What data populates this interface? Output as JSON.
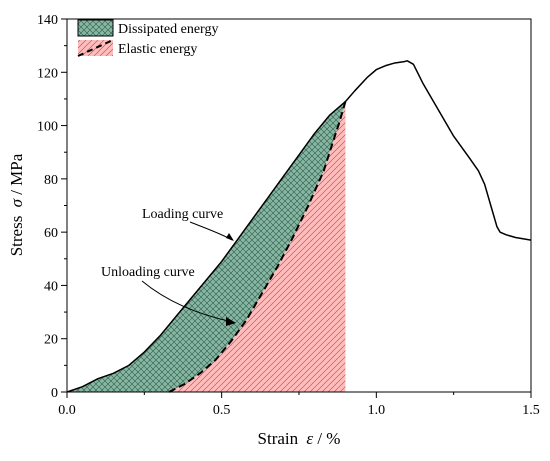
{
  "chart_data": {
    "type": "line",
    "xlabel_text": "Strain",
    "xlabel_symbol": "ε",
    "xlabel_unit": " / %",
    "ylabel_text": "Stress",
    "ylabel_symbol": "σ",
    "ylabel_unit": " / MPa",
    "xlim": [
      0,
      1.5
    ],
    "ylim": [
      0,
      140
    ],
    "x_ticks": [
      "0.0",
      "0.5",
      "1.0",
      "1.5"
    ],
    "y_ticks": [
      "0",
      "20",
      "40",
      "60",
      "80",
      "100",
      "120",
      "140"
    ],
    "legend": {
      "placement": "top-left",
      "items": [
        {
          "label": "Dissipated energy",
          "fill": "#87b7a2",
          "pattern": "crosshatch"
        },
        {
          "label": "Elastic energy",
          "fill": "#ffbcbc",
          "pattern": "diagonal"
        }
      ]
    },
    "annotations": {
      "loading": "Loading curve",
      "unloading": "Unloading curve"
    },
    "series": [
      {
        "name": "Loading curve",
        "style": "solid",
        "x": [
          0,
          0.05,
          0.1,
          0.15,
          0.2,
          0.25,
          0.3,
          0.35,
          0.4,
          0.45,
          0.5,
          0.55,
          0.6,
          0.65,
          0.7,
          0.75,
          0.8,
          0.85,
          0.88,
          0.9,
          0.93,
          0.97,
          1.0,
          1.03,
          1.06,
          1.09,
          1.1,
          1.12,
          1.15,
          1.2,
          1.25,
          1.3,
          1.33,
          1.35,
          1.37,
          1.39,
          1.4,
          1.42,
          1.45,
          1.5
        ],
        "y": [
          0,
          2,
          5,
          7,
          10,
          15,
          21,
          28,
          35,
          42,
          49,
          57,
          65,
          73,
          81,
          89,
          97,
          104,
          107,
          109,
          113,
          118,
          121,
          122.5,
          123.5,
          124,
          124.3,
          123,
          116,
          106,
          96,
          88,
          83,
          78,
          70,
          62,
          60,
          59,
          58,
          57
        ]
      },
      {
        "name": "Unloading curve",
        "style": "dashed",
        "x": [
          0.33,
          0.38,
          0.43,
          0.48,
          0.53,
          0.58,
          0.63,
          0.68,
          0.73,
          0.78,
          0.83,
          0.86,
          0.88,
          0.9
        ],
        "y": [
          0,
          3,
          7,
          12,
          19,
          27,
          37,
          47,
          58,
          70,
          83,
          94,
          101,
          109
        ]
      }
    ],
    "regions": [
      {
        "name": "Dissipated energy",
        "between": [
          "Loading curve",
          "Unloading curve"
        ],
        "x_range": [
          0,
          0.9
        ]
      },
      {
        "name": "Elastic energy",
        "under": "Unloading curve",
        "x_range": [
          0.33,
          0.9
        ]
      }
    ]
  }
}
